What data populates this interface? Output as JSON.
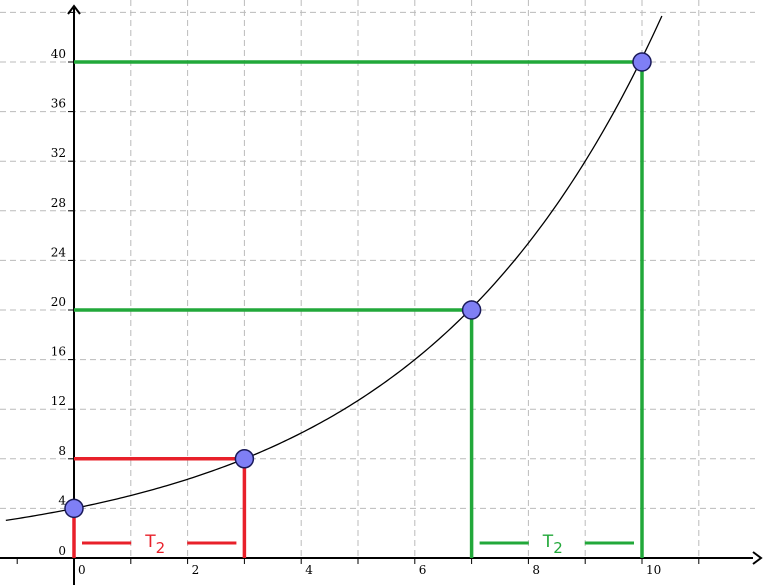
{
  "chart_data": {
    "type": "line",
    "title": "",
    "xlabel": "",
    "ylabel": "",
    "xlim": [
      -1.2,
      11.8
    ],
    "ylim": [
      -0.4,
      44
    ],
    "x_ticks": [
      0,
      2,
      4,
      6,
      8,
      10
    ],
    "y_ticks": [
      4,
      8,
      12,
      16,
      20,
      24,
      28,
      32,
      36,
      40
    ],
    "origin_label": "0",
    "x_tick_labels": [
      "0",
      "2",
      "4",
      "6",
      "8",
      "10"
    ],
    "y_tick_labels": [
      "4",
      "8",
      "12",
      "16",
      "20",
      "24",
      "28",
      "32",
      "36",
      "40"
    ],
    "grid": true,
    "curve": {
      "a": 4,
      "doubling_time": 3,
      "x_range": [
        -1.2,
        10.35
      ],
      "color": "#000000"
    },
    "points": [
      {
        "x": 0,
        "y": 4
      },
      {
        "x": 3,
        "y": 8
      },
      {
        "x": 7,
        "y": 20
      },
      {
        "x": 10,
        "y": 40
      }
    ],
    "annotations": [
      {
        "label": "T",
        "subscript": "2",
        "color": "#e8202a",
        "x_from": 0,
        "x_to": 3,
        "y_from": 4,
        "y_to": 8
      },
      {
        "label": "T",
        "subscript": "2",
        "color": "#22a83a",
        "x_from": 7,
        "x_to": 10,
        "y_from": 20,
        "y_to": 40
      }
    ],
    "colors": {
      "point_fill": "#7f7ff5",
      "point_stroke": "#1a1a5a",
      "grid": "#bbbbbb",
      "axis": "#000000"
    }
  }
}
